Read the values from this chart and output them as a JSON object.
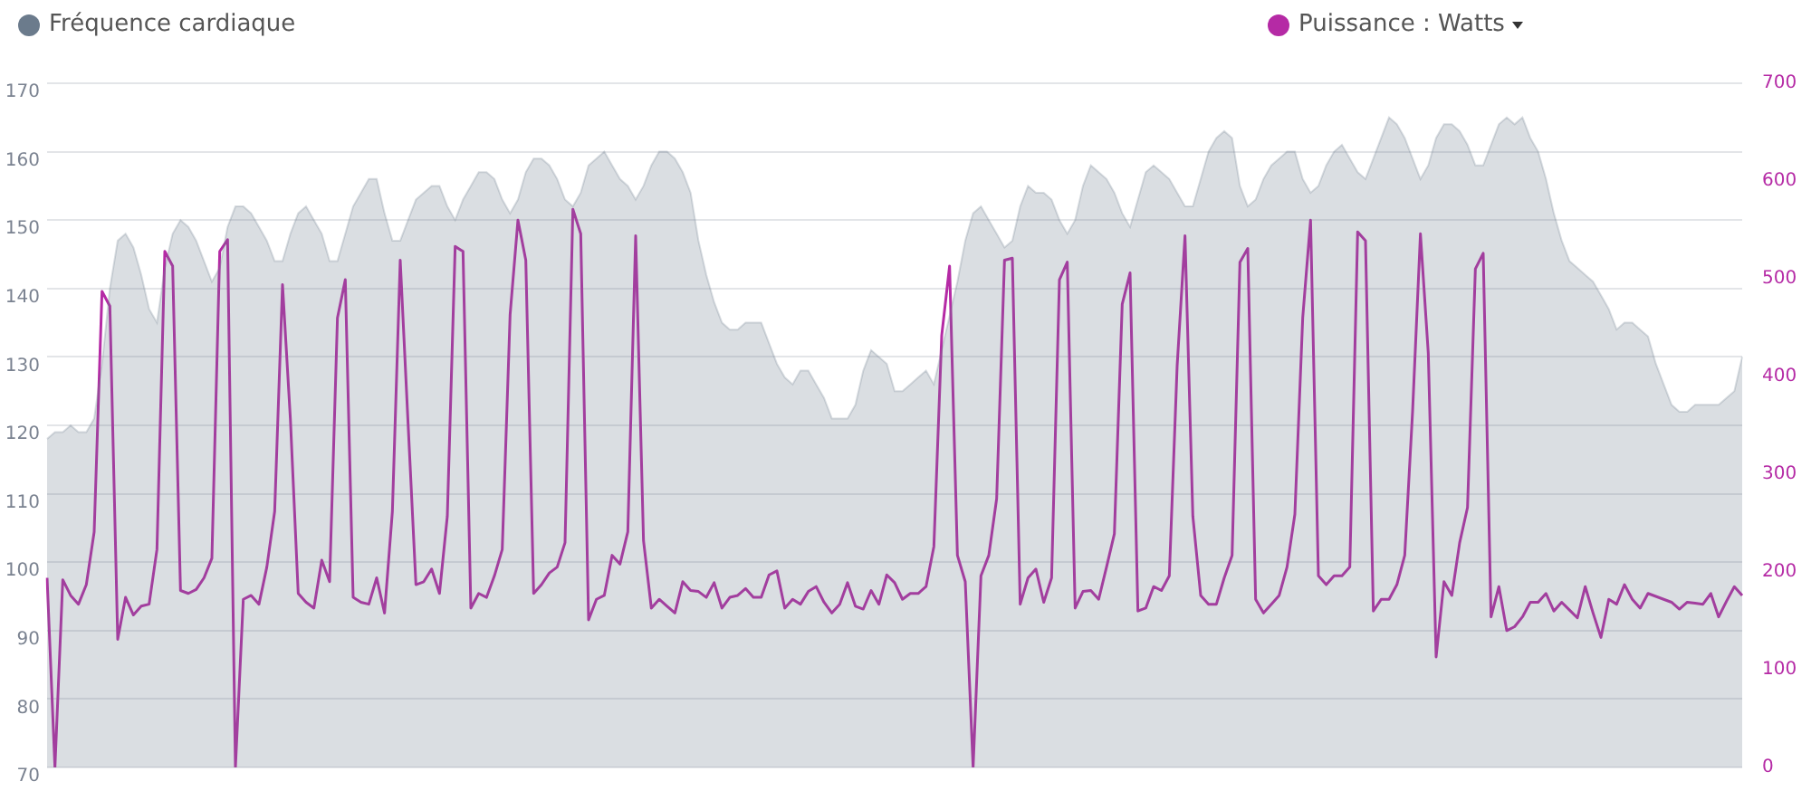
{
  "chart_data": {
    "type": "line",
    "categories": [
      null,
      null,
      null,
      null,
      null,
      null,
      null,
      null,
      null,
      null,
      null,
      null,
      null,
      null,
      null,
      null,
      null,
      null,
      null,
      null,
      null,
      null,
      null,
      null,
      null,
      null,
      null,
      null,
      null,
      null,
      null,
      null,
      null,
      null,
      null,
      null,
      null,
      null,
      null,
      null,
      null,
      null,
      null,
      null,
      null,
      null,
      null,
      null,
      null,
      null,
      null,
      null,
      null,
      null,
      null,
      null,
      null,
      null,
      null,
      null,
      null,
      null,
      null,
      null,
      null,
      null,
      null,
      null,
      null,
      null,
      null,
      null,
      null,
      null,
      null,
      null,
      null,
      null,
      null,
      null,
      null,
      null,
      null,
      null,
      null,
      null,
      null,
      null,
      null,
      null,
      null,
      null,
      null,
      null,
      null,
      null,
      null,
      null,
      null,
      null,
      null,
      null,
      null,
      null,
      null,
      null,
      null,
      null,
      null,
      null,
      null,
      null,
      null,
      null,
      null,
      null,
      null,
      null,
      null,
      null,
      null,
      null,
      null,
      null,
      null,
      null,
      null,
      null,
      null,
      null,
      null,
      null,
      null,
      null,
      null,
      null,
      null,
      null,
      null,
      null,
      null,
      null,
      null,
      null,
      null,
      null,
      null,
      null,
      null,
      null,
      null,
      null,
      null,
      null,
      null,
      null,
      null,
      null,
      null,
      null,
      null,
      null,
      null,
      null,
      null,
      null,
      null,
      null,
      null,
      null,
      null,
      null,
      null,
      null,
      null,
      null,
      null,
      null,
      null,
      null,
      null,
      null,
      null,
      null,
      null,
      null,
      null,
      null,
      null,
      null,
      null,
      null,
      null,
      null,
      null,
      null,
      null,
      null,
      null,
      null,
      null,
      null,
      null,
      null,
      null,
      null,
      null,
      null,
      null,
      null,
      null,
      null,
      null,
      null,
      null,
      null,
      null
    ],
    "series": [
      {
        "name": "Fréquence cardiaque",
        "type": "area",
        "color": "#6b7b8c",
        "values": [
          118,
          119,
          119,
          120,
          119,
          119,
          121,
          129,
          140,
          147,
          148,
          146,
          142,
          137,
          135,
          143,
          148,
          150,
          149,
          147,
          144,
          141,
          143,
          149,
          152,
          152,
          151,
          149,
          147,
          144,
          144,
          148,
          151,
          152,
          150,
          148,
          144,
          144,
          148,
          152,
          154,
          156,
          156,
          151,
          147,
          147,
          150,
          153,
          154,
          155,
          155,
          152,
          150,
          153,
          155,
          157,
          157,
          156,
          153,
          151,
          153,
          157,
          159,
          159,
          158,
          156,
          153,
          152,
          154,
          158,
          159,
          160,
          158,
          156,
          155,
          153,
          155,
          158,
          160,
          160,
          159,
          157,
          154,
          147,
          142,
          138,
          135,
          134,
          134,
          135,
          135,
          135,
          132,
          129,
          127,
          126,
          128,
          128,
          126,
          124,
          121,
          121,
          121,
          123,
          128,
          131,
          130,
          129,
          125,
          125,
          126,
          127,
          128,
          126,
          131,
          136,
          141,
          147,
          151,
          152,
          150,
          148,
          146,
          147,
          152,
          155,
          154,
          154,
          153,
          150,
          148,
          150,
          155,
          158,
          157,
          156,
          154,
          151,
          149,
          153,
          157,
          158,
          157,
          156,
          154,
          152,
          152,
          156,
          160,
          162,
          163,
          162,
          155,
          152,
          153,
          156,
          158,
          159,
          160,
          160,
          156,
          154,
          155,
          158,
          160,
          161,
          159,
          157,
          156,
          159,
          162,
          165,
          164,
          162,
          159,
          156,
          158,
          162,
          164,
          164,
          163,
          161,
          158,
          158,
          161,
          164,
          165,
          164,
          165,
          162,
          160,
          156,
          151,
          147,
          144,
          143,
          142,
          141,
          139,
          137,
          134,
          135,
          135,
          134,
          133,
          129,
          126,
          123,
          122,
          122,
          123,
          123,
          123,
          123,
          124,
          125,
          130
        ]
      },
      {
        "name": "Puissance : Watts",
        "type": "line",
        "axis": "y2",
        "color": "#b52aa5",
        "values": [
          194,
          0,
          192,
          176,
          167,
          187,
          241,
          487,
          472,
          131,
          174,
          156,
          165,
          167,
          223,
          528,
          513,
          181,
          178,
          182,
          194,
          214,
          528,
          540,
          0,
          172,
          176,
          167,
          205,
          262,
          494,
          357,
          178,
          169,
          163,
          212,
          190,
          460,
          499,
          174,
          169,
          167,
          194,
          158,
          262,
          519,
          352,
          187,
          190,
          203,
          178,
          257,
          533,
          528,
          163,
          178,
          174,
          196,
          223,
          463,
          560,
          519,
          178,
          187,
          199,
          205,
          230,
          571,
          546,
          151,
          172,
          176,
          217,
          208,
          241,
          544,
          232,
          163,
          172,
          165,
          158,
          190,
          181,
          180,
          174,
          189,
          163,
          174,
          176,
          183,
          174,
          174,
          197,
          201,
          163,
          172,
          167,
          180,
          185,
          169,
          158,
          167,
          189,
          165,
          162,
          181,
          167,
          197,
          189,
          172,
          178,
          178,
          185,
          226,
          442,
          513,
          217,
          190,
          0,
          196,
          217,
          275,
          519,
          521,
          167,
          194,
          203,
          169,
          194,
          499,
          517,
          163,
          180,
          181,
          172,
          205,
          239,
          474,
          506,
          160,
          163,
          185,
          181,
          196,
          411,
          544,
          257,
          176,
          167,
          167,
          194,
          217,
          517,
          531,
          172,
          158,
          167,
          176,
          205,
          259,
          460,
          560,
          196,
          187,
          196,
          196,
          205,
          548,
          539,
          160,
          172,
          172,
          187,
          217,
          364,
          546,
          424,
          113,
          190,
          176,
          230,
          266,
          510,
          526,
          154,
          185,
          140,
          144,
          154,
          169,
          169,
          178,
          160,
          169,
          161,
          153,
          185,
          158,
          133,
          172,
          167,
          187,
          172,
          163,
          178,
          175,
          172,
          169,
          162,
          169,
          168,
          167,
          178,
          154,
          170,
          185,
          176
        ]
      }
    ],
    "ylim": [
      70,
      170
    ],
    "yticks": [
      70,
      80,
      90,
      100,
      110,
      120,
      130,
      140,
      150,
      160,
      170
    ],
    "y2lim": [
      0,
      700
    ],
    "y2ticks": [
      0,
      100,
      200,
      300,
      400,
      500,
      600,
      700
    ],
    "grid": "y",
    "legend": "top"
  }
}
